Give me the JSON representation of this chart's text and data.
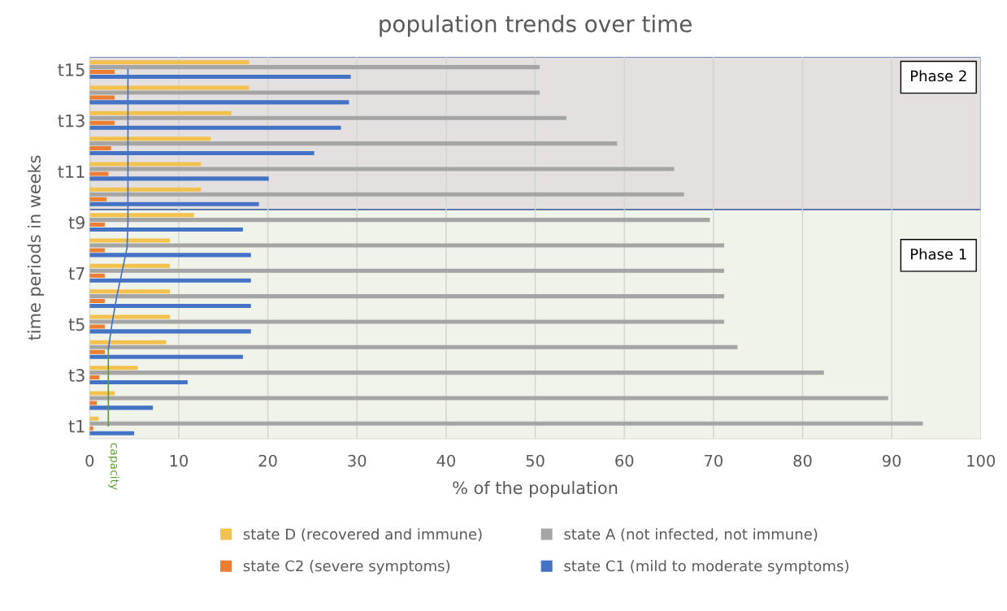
{
  "chart_data": {
    "type": "bar",
    "orientation": "horizontal",
    "title": "population trends over time",
    "xlabel": "% of the population",
    "ylabel": "time periods in weeks",
    "categories": [
      "t15",
      null,
      "t13",
      null,
      "t11",
      null,
      "t9",
      null,
      "t7",
      null,
      "t5",
      null,
      "t3",
      null,
      "t1"
    ],
    "series": [
      {
        "name": "state D (recovered and immune)",
        "color": "#f2c14e",
        "values": [
          17.9,
          17.9,
          15.9,
          13.6,
          12.5,
          12.5,
          11.7,
          9.0,
          9.0,
          9.0,
          9.0,
          8.6,
          5.4,
          2.8,
          1.0
        ]
      },
      {
        "name": "state A (not infected, not immune)",
        "color": "#a5a5a5",
        "values": [
          50.5,
          50.5,
          53.5,
          59.2,
          65.6,
          66.7,
          69.6,
          71.2,
          71.2,
          71.2,
          71.2,
          72.7,
          82.4,
          89.6,
          93.5
        ]
      },
      {
        "name": "state C2 (severe symptoms)",
        "color": "#ed7d31",
        "values": [
          2.8,
          2.8,
          2.8,
          2.4,
          2.1,
          1.9,
          1.7,
          1.7,
          1.7,
          1.7,
          1.7,
          1.7,
          1.1,
          0.8,
          0.4
        ]
      },
      {
        "name": "state C1 (mild to moderate symptoms)",
        "color": "#4472c4",
        "values": [
          29.3,
          29.1,
          28.2,
          25.2,
          20.1,
          19.0,
          17.2,
          18.1,
          18.1,
          18.1,
          18.1,
          17.2,
          11.0,
          7.1,
          5.0
        ]
      },
      {
        "type": "line",
        "name": "capacity",
        "color": "#5aa02c",
        "values": [
          null,
          null,
          null,
          null,
          null,
          null,
          null,
          null,
          null,
          null,
          null,
          2.1,
          2.1,
          2.1,
          2.1
        ]
      },
      {
        "type": "line",
        "color": "#4472c4",
        "values": [
          4.3,
          4.3,
          4.3,
          4.3,
          4.3,
          4.3,
          4.3,
          4.2,
          3.6,
          3.0,
          2.5,
          2.1,
          null,
          null,
          null
        ]
      }
    ],
    "xlim": [
      0,
      100
    ],
    "xticks": [
      0,
      10,
      20,
      30,
      40,
      50,
      60,
      70,
      80,
      90,
      100
    ],
    "grid": "x",
    "legend": "bottom",
    "annotations": [
      "Phase 2",
      "Phase 1"
    ]
  }
}
